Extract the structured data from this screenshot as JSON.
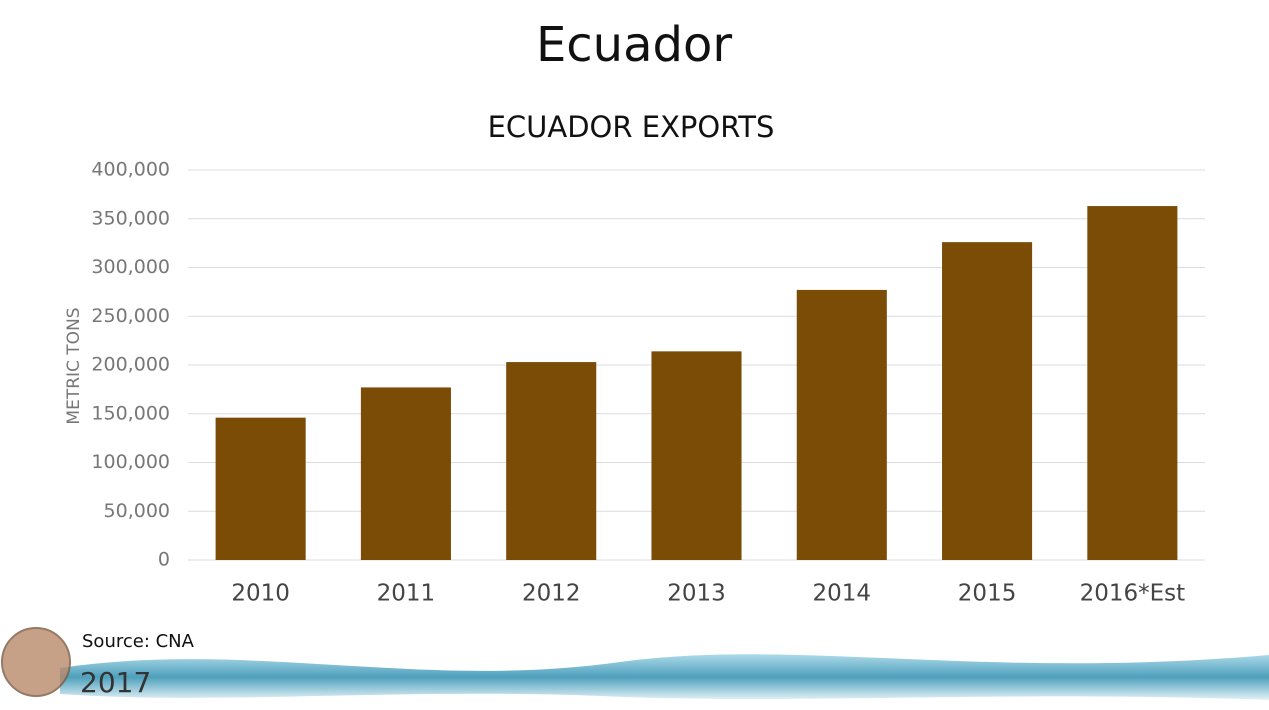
{
  "slide": {
    "title": "Ecuador"
  },
  "chart_data": {
    "type": "bar",
    "title": "ECUADOR EXPORTS",
    "y_label": "METRIC TONS",
    "categories": [
      "2010",
      "2011",
      "2012",
      "2013",
      "2014",
      "2015",
      "2016*Est"
    ],
    "values": [
      146000,
      177000,
      203000,
      214000,
      277000,
      326000,
      363000
    ],
    "color": "#7b4c06",
    "ylim": [
      0,
      400000
    ],
    "yticks": [
      0,
      {
        "value": 50000,
        "label": "50,000"
      },
      {
        "value": 100000,
        "label": "100,000"
      },
      {
        "value": 150000,
        "label": "150,000"
      },
      {
        "value": 200000,
        "label": "200,000"
      },
      {
        "value": 250000,
        "label": "250,000"
      },
      {
        "value": 300000,
        "label": "300,000"
      },
      {
        "value": 350000,
        "label": "350,000"
      },
      {
        "value": 400000,
        "label": "400,000"
      }
    ],
    "grid": true
  },
  "footer": {
    "source": "Source: CNA",
    "year": "2017"
  }
}
